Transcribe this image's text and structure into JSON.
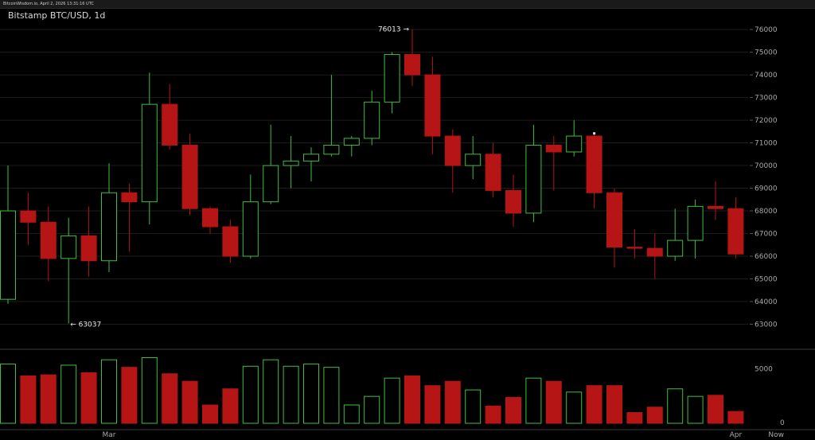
{
  "window": {
    "topbar_text": "BitcoinWisdom.io, April 2, 2026 13:31:16 UTC"
  },
  "chart_data": {
    "type": "candlestick",
    "title": "Bitstamp BTC/USD, 1d",
    "price_axis": {
      "range": [
        62000,
        76600
      ],
      "ticks": [
        63000,
        64000,
        65000,
        66000,
        67000,
        68000,
        69000,
        70000,
        71000,
        72000,
        73000,
        74000,
        75000,
        76000
      ]
    },
    "volume_axis": {
      "range": [
        0,
        6800
      ],
      "ticks": [
        0,
        5000
      ]
    },
    "x_axis": {
      "tick_labels": [
        {
          "label": "Mar",
          "index": 5
        },
        {
          "label": "Apr",
          "index": 36
        },
        {
          "label": "Now",
          "index": 38
        }
      ]
    },
    "colors": {
      "up": "#3fbf3f",
      "down": "#b51515",
      "grid": "#1c1c1c",
      "axis_text": "#a8a8a8"
    },
    "candles": [
      {
        "o": 64100,
        "h": 70000,
        "l": 63900,
        "c": 68000,
        "v": 5500
      },
      {
        "o": 68000,
        "h": 68800,
        "l": 66500,
        "c": 67500,
        "v": 4400
      },
      {
        "o": 67500,
        "h": 68200,
        "l": 64900,
        "c": 65900,
        "v": 4500
      },
      {
        "o": 65900,
        "h": 67700,
        "l": 63037,
        "c": 66900,
        "v": 5400
      },
      {
        "o": 66900,
        "h": 68200,
        "l": 65100,
        "c": 65800,
        "v": 4700
      },
      {
        "o": 65800,
        "h": 70100,
        "l": 65300,
        "c": 68800,
        "v": 5900
      },
      {
        "o": 68800,
        "h": 69200,
        "l": 66200,
        "c": 68400,
        "v": 5200
      },
      {
        "o": 68400,
        "h": 74100,
        "l": 67400,
        "c": 72700,
        "v": 6100
      },
      {
        "o": 72700,
        "h": 73600,
        "l": 70700,
        "c": 70900,
        "v": 4600
      },
      {
        "o": 70900,
        "h": 71400,
        "l": 67800,
        "c": 68100,
        "v": 3900
      },
      {
        "o": 68100,
        "h": 68200,
        "l": 67000,
        "c": 67300,
        "v": 1700
      },
      {
        "o": 67300,
        "h": 67600,
        "l": 65700,
        "c": 66000,
        "v": 3200
      },
      {
        "o": 66000,
        "h": 69600,
        "l": 65900,
        "c": 68400,
        "v": 5300
      },
      {
        "o": 68400,
        "h": 71800,
        "l": 68300,
        "c": 70000,
        "v": 5900
      },
      {
        "o": 70000,
        "h": 71300,
        "l": 69000,
        "c": 70200,
        "v": 5300
      },
      {
        "o": 70200,
        "h": 70800,
        "l": 69300,
        "c": 70500,
        "v": 5500
      },
      {
        "o": 70500,
        "h": 74000,
        "l": 70400,
        "c": 70900,
        "v": 5200
      },
      {
        "o": 70900,
        "h": 71300,
        "l": 70400,
        "c": 71200,
        "v": 1700
      },
      {
        "o": 71200,
        "h": 73300,
        "l": 70900,
        "c": 72800,
        "v": 2500
      },
      {
        "o": 72800,
        "h": 75000,
        "l": 72300,
        "c": 74900,
        "v": 4200
      },
      {
        "o": 74900,
        "h": 76013,
        "l": 73500,
        "c": 74000,
        "v": 4400
      },
      {
        "o": 74000,
        "h": 74800,
        "l": 70500,
        "c": 71300,
        "v": 3500
      },
      {
        "o": 71300,
        "h": 71600,
        "l": 68800,
        "c": 70000,
        "v": 3900
      },
      {
        "o": 70000,
        "h": 71300,
        "l": 69400,
        "c": 70500,
        "v": 3100
      },
      {
        "o": 70500,
        "h": 71000,
        "l": 68600,
        "c": 68900,
        "v": 1600
      },
      {
        "o": 68900,
        "h": 69600,
        "l": 67300,
        "c": 67900,
        "v": 2400
      },
      {
        "o": 67900,
        "h": 71800,
        "l": 67500,
        "c": 70900,
        "v": 4200
      },
      {
        "o": 70900,
        "h": 71300,
        "l": 68900,
        "c": 70600,
        "v": 3900
      },
      {
        "o": 70600,
        "h": 72000,
        "l": 70400,
        "c": 71300,
        "v": 2900
      },
      {
        "o": 71300,
        "h": 71400,
        "l": 68100,
        "c": 68800,
        "v": 3500
      },
      {
        "o": 68800,
        "h": 69000,
        "l": 65500,
        "c": 66400,
        "v": 3500
      },
      {
        "o": 66400,
        "h": 67200,
        "l": 65900,
        "c": 66350,
        "v": 1000
      },
      {
        "o": 66350,
        "h": 67000,
        "l": 65000,
        "c": 66000,
        "v": 1500
      },
      {
        "o": 66000,
        "h": 68100,
        "l": 65800,
        "c": 66700,
        "v": 3200
      },
      {
        "o": 66700,
        "h": 68500,
        "l": 65900,
        "c": 68200,
        "v": 2500
      },
      {
        "o": 68200,
        "h": 69300,
        "l": 67600,
        "c": 68100,
        "v": 2600
      },
      {
        "o": 68100,
        "h": 68600,
        "l": 65900,
        "c": 66100,
        "v": 1100
      }
    ],
    "annotations": [
      {
        "text": "76013 →",
        "index": 20,
        "price": 76013,
        "side": "left"
      },
      {
        "text": "← 63037",
        "index": 3,
        "price": 63037,
        "side": "right"
      }
    ],
    "marker": {
      "index": 29,
      "price": 71400,
      "color": "#dddddd"
    }
  }
}
